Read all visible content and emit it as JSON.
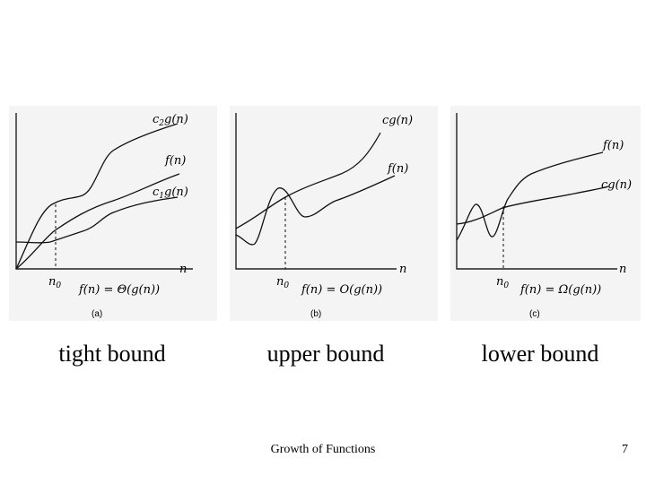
{
  "panels": [
    {
      "tag": "(a)",
      "caption": "tight bound",
      "upper_label": "c",
      "upper_sub": "2",
      "upper_tail": "g(n)",
      "f_label": "f(n)",
      "lower_label": "c",
      "lower_sub": "1",
      "lower_tail": "g(n)",
      "n_label": "n",
      "n0_label": "n",
      "n0_sub": "0",
      "equation": "f(n) = Θ(g(n))"
    },
    {
      "tag": "(b)",
      "caption": "upper bound",
      "g_label": "cg(n)",
      "f_label": "f(n)",
      "n_label": "n",
      "n0_label": "n",
      "n0_sub": "0",
      "equation": "f(n) = O(g(n))"
    },
    {
      "tag": "(c)",
      "caption": "lower bound",
      "f_label": "f(n)",
      "g_label": "cg(n)",
      "n_label": "n",
      "n0_label": "n",
      "n0_sub": "0",
      "equation": "f(n) = Ω(g(n))"
    }
  ],
  "footer": {
    "title": "Growth of Functions",
    "page_number": "7"
  }
}
